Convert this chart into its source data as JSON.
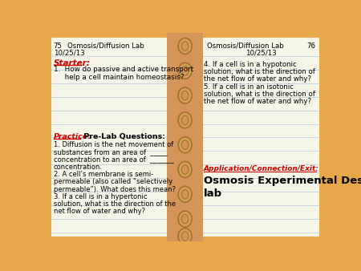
{
  "bg_color": "#E8A84A",
  "page_color": "#F5F5E8",
  "line_color": "#B8C8D8",
  "page_num_left": "75",
  "page_num_right": "76",
  "header_left": "Osmosis/Diffusion Lab",
  "header_right": "Osmosis/Diffusion Lab",
  "date_left": "10/25/13",
  "date_right": "10/25/13",
  "starter_label": "Starter:",
  "starter_color": "#CC0000",
  "starter_text": "1.  How do passive and active transport\n     help a cell maintain homeostasis?",
  "practice_label": "Practice:",
  "practice_color": "#CC0000",
  "practice_header": " Pre-Lab Questions:",
  "practice_text": "1. Diffusion is the net movement of\nsubstances from an area of  _____\nconcentration to an area of  _______\nconcentration.\n2. A cell’s membrane is semi-\npermeable (also called “selectively\npermeable”). What does this mean?\n3. If a cell is in a hypertonic\nsolution, what is the direction of the\nnet flow of water and why?",
  "right_top_text": "4. If a cell is in a hypotonic\nsolution, what is the direction of\nthe net flow of water and why?\n5. If a cell is in an isotonic\nsolution, what is the direction of\nthe net flow of water and why?",
  "app_label": "Application/Connection/Exit:",
  "app_color": "#CC0000",
  "app_text": "Osmosis Experimental Design\nlab",
  "spine_color": "#D4955A",
  "ring_color": "#D4A055",
  "ring_shadow": "#A07030"
}
